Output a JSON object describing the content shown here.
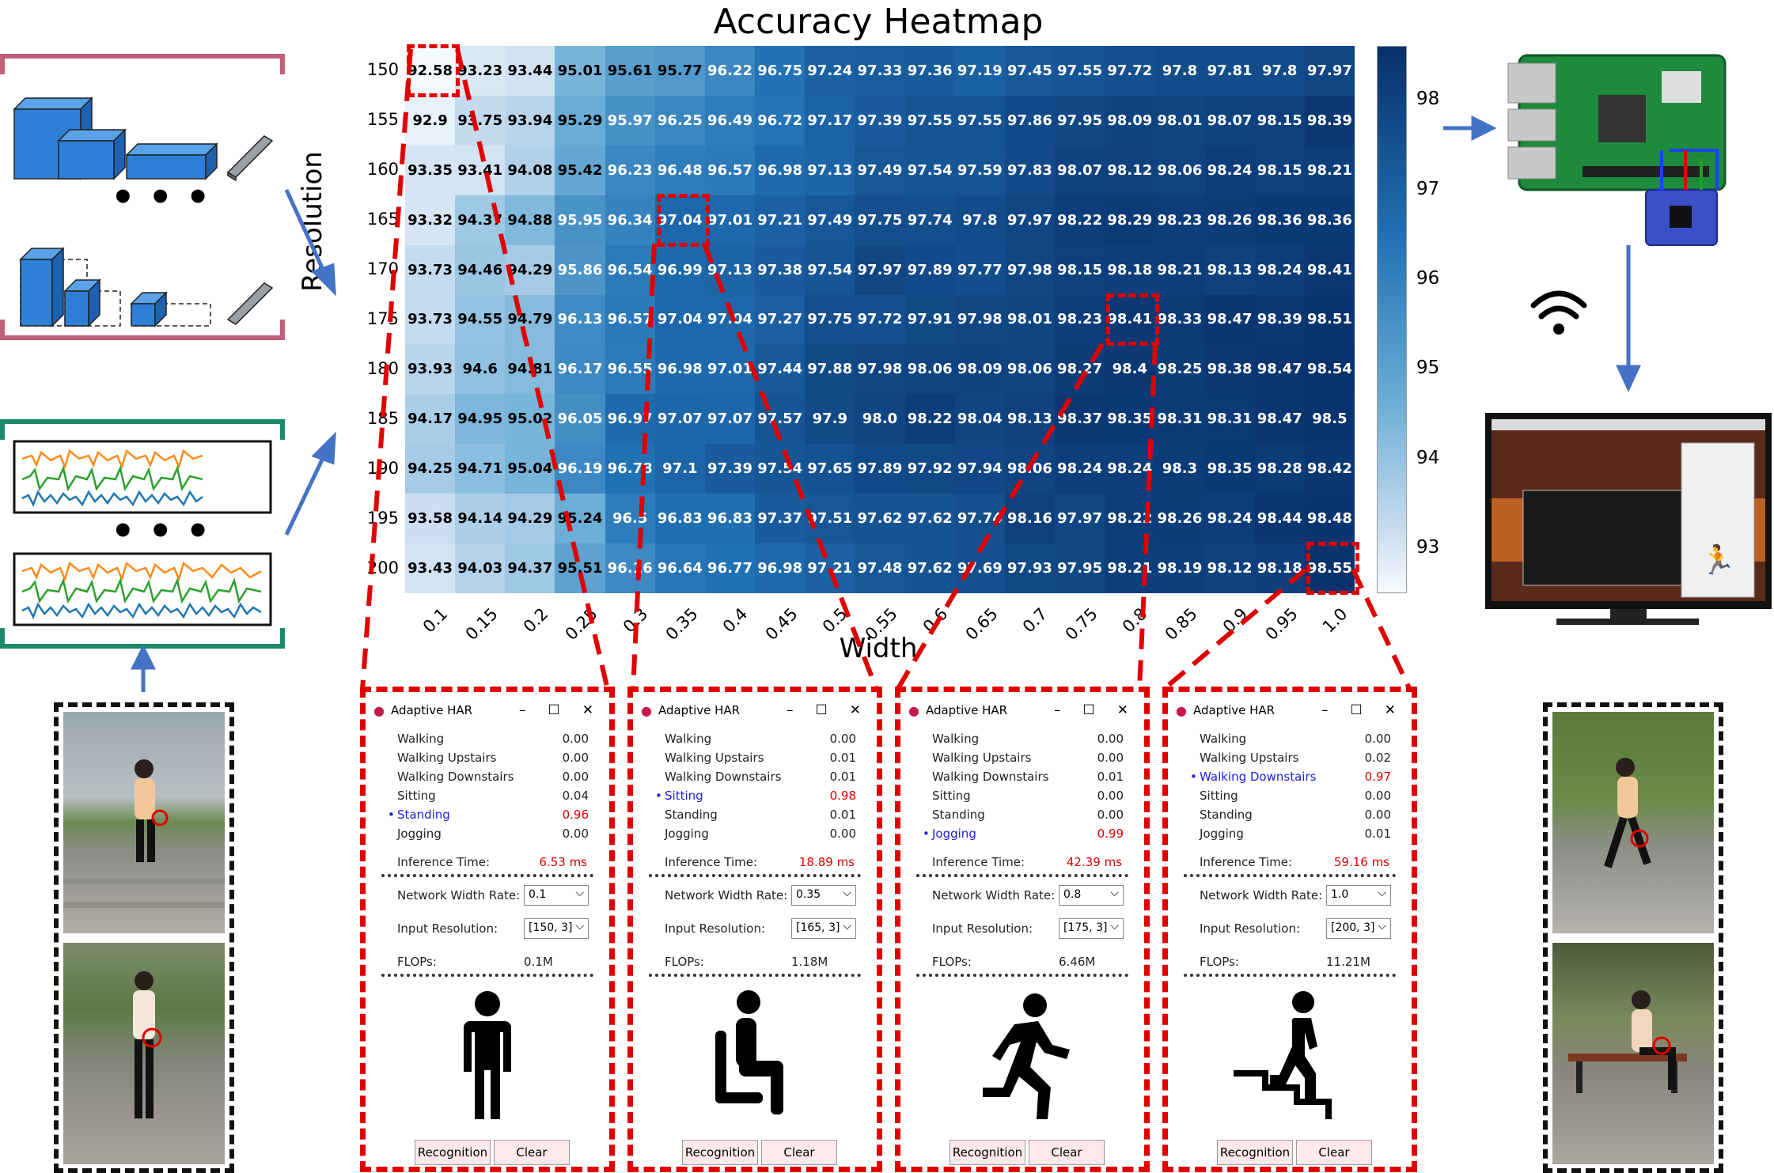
{
  "chart_data": {
    "type": "heatmap",
    "title": "Accuracy Heatmap",
    "xlabel": "Width",
    "ylabel": "Resolution",
    "x": [
      "0.1",
      "0.15",
      "0.2",
      "0.25",
      "0.3",
      "0.35",
      "0.4",
      "0.45",
      "0.5",
      "0.55",
      "0.6",
      "0.65",
      "0.7",
      "0.75",
      "0.8",
      "0.85",
      "0.9",
      "0.95",
      "1.0"
    ],
    "y": [
      "150",
      "155",
      "160",
      "165",
      "170",
      "175",
      "180",
      "185",
      "190",
      "195",
      "200"
    ],
    "values": [
      [
        "92.58",
        "93.23",
        "93.44",
        "95.01",
        "95.61",
        "95.77",
        "96.22",
        "96.75",
        "97.24",
        "97.33",
        "97.36",
        "97.19",
        "97.45",
        "97.55",
        "97.72",
        "97.8",
        "97.81",
        "97.8",
        "97.97"
      ],
      [
        "92.9",
        "93.75",
        "93.94",
        "95.29",
        "95.97",
        "96.25",
        "96.49",
        "96.72",
        "97.17",
        "97.39",
        "97.55",
        "97.55",
        "97.86",
        "97.95",
        "98.09",
        "98.01",
        "98.07",
        "98.15",
        "98.39"
      ],
      [
        "93.35",
        "93.41",
        "94.08",
        "95.42",
        "96.23",
        "96.48",
        "96.57",
        "96.98",
        "97.13",
        "97.49",
        "97.54",
        "97.59",
        "97.83",
        "98.07",
        "98.12",
        "98.06",
        "98.24",
        "98.15",
        "98.21"
      ],
      [
        "93.32",
        "94.37",
        "94.88",
        "95.95",
        "96.34",
        "97.04",
        "97.01",
        "97.21",
        "97.49",
        "97.75",
        "97.74",
        "97.8",
        "97.97",
        "98.22",
        "98.29",
        "98.23",
        "98.26",
        "98.36",
        "98.36"
      ],
      [
        "93.73",
        "94.46",
        "94.29",
        "95.86",
        "96.54",
        "96.99",
        "97.13",
        "97.38",
        "97.54",
        "97.97",
        "97.89",
        "97.77",
        "97.98",
        "98.15",
        "98.18",
        "98.21",
        "98.13",
        "98.24",
        "98.41"
      ],
      [
        "93.73",
        "94.55",
        "94.79",
        "96.13",
        "96.57",
        "97.04",
        "97.04",
        "97.27",
        "97.75",
        "97.72",
        "97.91",
        "97.98",
        "98.01",
        "98.23",
        "98.41",
        "98.33",
        "98.47",
        "98.39",
        "98.51"
      ],
      [
        "93.93",
        "94.6",
        "94.81",
        "96.17",
        "96.55",
        "96.98",
        "97.01",
        "97.44",
        "97.88",
        "97.98",
        "98.06",
        "98.09",
        "98.06",
        "98.27",
        "98.4",
        "98.25",
        "98.38",
        "98.47",
        "98.54"
      ],
      [
        "94.17",
        "94.95",
        "95.02",
        "96.05",
        "96.97",
        "97.07",
        "97.07",
        "97.57",
        "97.9",
        "98.0",
        "98.22",
        "98.04",
        "98.13",
        "98.37",
        "98.35",
        "98.31",
        "98.31",
        "98.47",
        "98.5"
      ],
      [
        "94.25",
        "94.71",
        "95.04",
        "96.19",
        "96.78",
        "97.1",
        "97.39",
        "97.54",
        "97.65",
        "97.89",
        "97.92",
        "97.94",
        "98.06",
        "98.24",
        "98.24",
        "98.3",
        "98.35",
        "98.28",
        "98.42"
      ],
      [
        "93.58",
        "94.14",
        "94.29",
        "95.24",
        "96.5",
        "96.83",
        "96.83",
        "97.37",
        "97.51",
        "97.62",
        "97.62",
        "97.74",
        "98.16",
        "97.97",
        "98.22",
        "98.26",
        "98.24",
        "98.44",
        "98.48"
      ],
      [
        "93.43",
        "94.03",
        "94.37",
        "95.51",
        "96.16",
        "96.64",
        "96.77",
        "96.98",
        "97.21",
        "97.48",
        "97.62",
        "97.69",
        "97.93",
        "97.95",
        "98.21",
        "98.19",
        "98.12",
        "98.18",
        "98.55"
      ]
    ],
    "colorbar_ticks": [
      "98",
      "97",
      "96",
      "95",
      "94",
      "93"
    ],
    "vmin": 92.5,
    "vmax": 98.6,
    "highlighted_cells": [
      {
        "width": "0.1",
        "resolution": "150"
      },
      {
        "width": "0.35",
        "resolution": "165"
      },
      {
        "width": "0.8",
        "resolution": "175"
      },
      {
        "width": "1.0",
        "resolution": "200"
      }
    ]
  },
  "colors": {
    "highlight": "#e00000",
    "model_frame": "#c0607a",
    "signal_frame": "#1a8a6a",
    "arrow": "#4472c4",
    "block_blue": "#2e7fd6"
  },
  "panels": [
    {
      "title": "Adaptive HAR",
      "rows": [
        {
          "label": "Walking",
          "value": "0.00"
        },
        {
          "label": "Walking Upstairs",
          "value": "0.00"
        },
        {
          "label": "Walking Downstairs",
          "value": "0.00"
        },
        {
          "label": "Sitting",
          "value": "0.04"
        },
        {
          "label": "Standing",
          "value": "0.96",
          "selected": true
        },
        {
          "label": "Jogging",
          "value": "0.00"
        }
      ],
      "inference_label": "Inference Time:",
      "inference_value": "6.53 ms",
      "width_label": "Network Width Rate:",
      "width_value": "0.1",
      "res_label": "Input Resolution:",
      "res_value": "[150, 3]",
      "flops_label": "FLOPs:",
      "flops_value": "0.1M",
      "activity_icon": "standing-person-icon",
      "recognition_label": "Recognition",
      "clear_label": "Clear"
    },
    {
      "title": "Adaptive HAR",
      "rows": [
        {
          "label": "Walking",
          "value": "0.00"
        },
        {
          "label": "Walking Upstairs",
          "value": "0.01"
        },
        {
          "label": "Walking Downstairs",
          "value": "0.01"
        },
        {
          "label": "Sitting",
          "value": "0.98",
          "selected": true
        },
        {
          "label": "Standing",
          "value": "0.01"
        },
        {
          "label": "Jogging",
          "value": "0.00"
        }
      ],
      "inference_label": "Inference Time:",
      "inference_value": "18.89 ms",
      "width_label": "Network Width Rate:",
      "width_value": "0.35",
      "res_label": "Input Resolution:",
      "res_value": "[165, 3]",
      "flops_label": "FLOPs:",
      "flops_value": "1.18M",
      "activity_icon": "sitting-person-icon",
      "recognition_label": "Recognition",
      "clear_label": "Clear"
    },
    {
      "title": "Adaptive HAR",
      "rows": [
        {
          "label": "Walking",
          "value": "0.00"
        },
        {
          "label": "Walking Upstairs",
          "value": "0.00"
        },
        {
          "label": "Walking Downstairs",
          "value": "0.01"
        },
        {
          "label": "Sitting",
          "value": "0.00"
        },
        {
          "label": "Standing",
          "value": "0.00"
        },
        {
          "label": "Jogging",
          "value": "0.99",
          "selected": true
        }
      ],
      "inference_label": "Inference Time:",
      "inference_value": "42.39 ms",
      "width_label": "Network Width Rate:",
      "width_value": "0.8",
      "res_label": "Input Resolution:",
      "res_value": "[175, 3]",
      "flops_label": "FLOPs:",
      "flops_value": "6.46M",
      "activity_icon": "running-person-icon",
      "recognition_label": "Recognition",
      "clear_label": "Clear"
    },
    {
      "title": "Adaptive HAR",
      "rows": [
        {
          "label": "Walking",
          "value": "0.00"
        },
        {
          "label": "Walking Upstairs",
          "value": "0.02"
        },
        {
          "label": "Walking Downstairs",
          "value": "0.97",
          "selected": true
        },
        {
          "label": "Sitting",
          "value": "0.00"
        },
        {
          "label": "Standing",
          "value": "0.00"
        },
        {
          "label": "Jogging",
          "value": "0.01"
        }
      ],
      "inference_label": "Inference Time:",
      "inference_value": "59.16 ms",
      "width_label": "Network Width Rate:",
      "width_value": "1.0",
      "res_label": "Input Resolution:",
      "res_value": "[200, 3]",
      "flops_label": "FLOPs:",
      "flops_value": "11.21M",
      "activity_icon": "stairs-person-icon",
      "recognition_label": "Recognition",
      "clear_label": "Clear"
    }
  ]
}
